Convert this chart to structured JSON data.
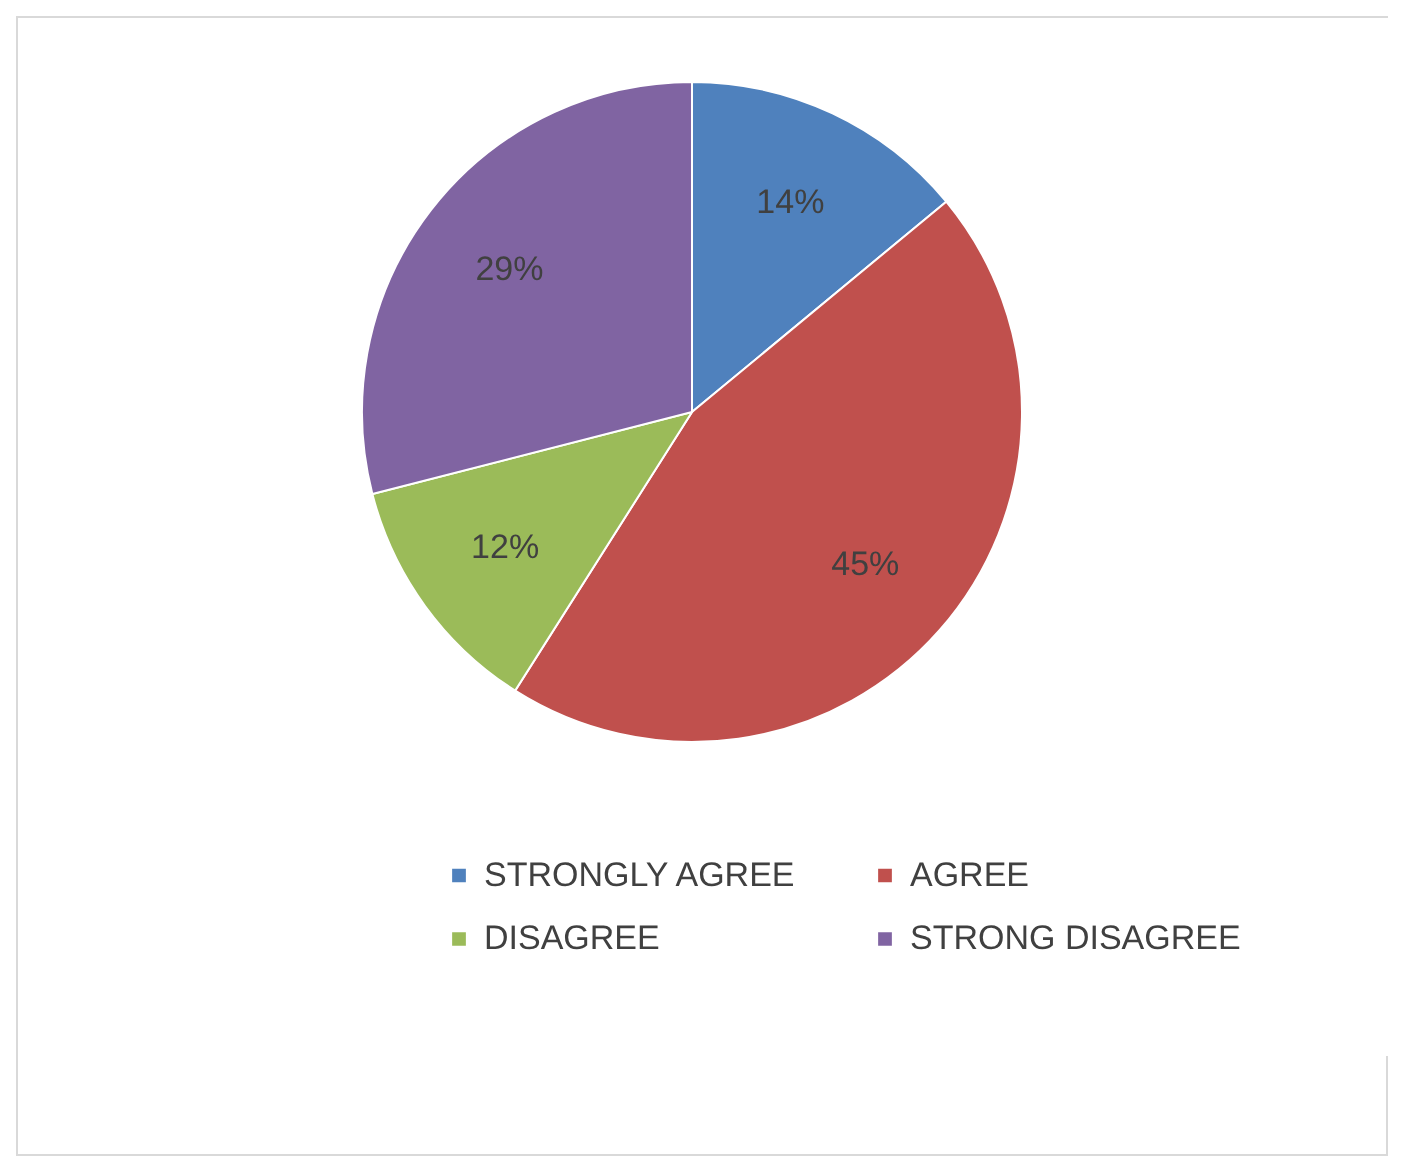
{
  "chart_data": {
    "type": "pie",
    "categories": [
      "STRONGLY  AGREE",
      "AGREE",
      "DISAGREE",
      "STRONG DISAGREE"
    ],
    "values": [
      14,
      45,
      12,
      29
    ],
    "colors": [
      "#4f81bd",
      "#c0504d",
      "#9bbb59",
      "#8064a2"
    ],
    "value_labels": [
      "14%",
      "45%",
      "12%",
      "29%"
    ],
    "legend": "bottom"
  }
}
